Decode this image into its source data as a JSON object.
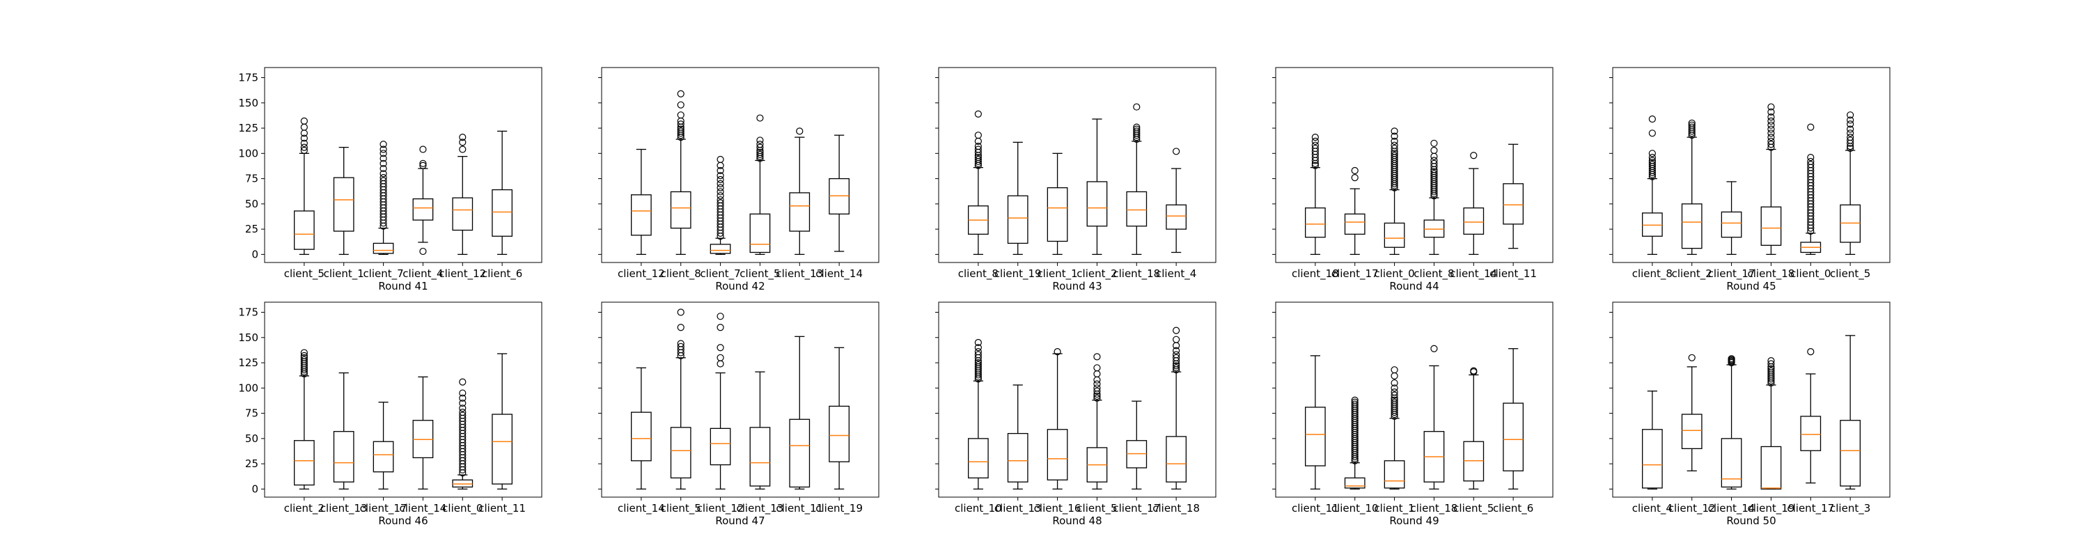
{
  "chart_data": [
    {
      "type": "box",
      "xlabel": "Round 41",
      "ylim": [
        -8,
        185
      ],
      "yticks": [
        0,
        25,
        50,
        75,
        100,
        125,
        150,
        175
      ],
      "categories": [
        "client_5",
        "client_1",
        "client_7",
        "client_4",
        "client_12",
        "client_6"
      ],
      "boxes": [
        {
          "whislo": 0,
          "q1": 5,
          "med": 20,
          "q3": 43,
          "whishi": 100,
          "fliers": [
            103,
            106,
            110,
            115,
            120,
            126,
            132
          ]
        },
        {
          "whislo": 0,
          "q1": 23,
          "med": 54,
          "q3": 76,
          "whishi": 106,
          "fliers": []
        },
        {
          "whislo": 0,
          "q1": 1,
          "med": 4,
          "q3": 11,
          "whishi": 26,
          "fliers": [
            28,
            31,
            34,
            37,
            40,
            43,
            46,
            49,
            52,
            55,
            58,
            61,
            64,
            67,
            70,
            73,
            76,
            80,
            85,
            90,
            95,
            100,
            104,
            109
          ]
        },
        {
          "whislo": 12,
          "q1": 34,
          "med": 46,
          "q3": 55,
          "whishi": 85,
          "fliers": [
            3,
            88,
            90,
            104
          ]
        },
        {
          "whislo": 0,
          "q1": 24,
          "med": 44,
          "q3": 56,
          "whishi": 97,
          "fliers": [
            104,
            111,
            116
          ]
        },
        {
          "whislo": 0,
          "q1": 18,
          "med": 42,
          "q3": 64,
          "whishi": 122,
          "fliers": []
        }
      ]
    },
    {
      "type": "box",
      "xlabel": "Round 42",
      "ylim": [
        -8,
        185
      ],
      "yticks": [
        0,
        25,
        50,
        75,
        100,
        125,
        150,
        175
      ],
      "categories": [
        "client_12",
        "client_8",
        "client_7",
        "client_5",
        "client_13",
        "client_14"
      ],
      "boxes": [
        {
          "whislo": 0,
          "q1": 19,
          "med": 43,
          "q3": 59,
          "whishi": 104,
          "fliers": []
        },
        {
          "whislo": 0,
          "q1": 26,
          "med": 46,
          "q3": 62,
          "whishi": 114,
          "fliers": [
            116,
            118,
            120,
            122,
            124,
            126,
            129,
            132,
            138,
            148,
            159
          ]
        },
        {
          "whislo": 0,
          "q1": 1,
          "med": 4,
          "q3": 10,
          "whishi": 16,
          "fliers": [
            18,
            21,
            24,
            27,
            30,
            33,
            36,
            39,
            42,
            45,
            48,
            51,
            54,
            58,
            62,
            66,
            70,
            74,
            78,
            83,
            88,
            94
          ]
        },
        {
          "whislo": 0,
          "q1": 2,
          "med": 10,
          "q3": 40,
          "whishi": 93,
          "fliers": [
            95,
            97,
            99,
            101,
            103,
            106,
            109,
            113,
            135
          ]
        },
        {
          "whislo": 0,
          "q1": 23,
          "med": 48,
          "q3": 61,
          "whishi": 116,
          "fliers": [
            122
          ]
        },
        {
          "whislo": 3,
          "q1": 40,
          "med": 58,
          "q3": 75,
          "whishi": 118,
          "fliers": []
        }
      ]
    },
    {
      "type": "box",
      "xlabel": "Round 43",
      "ylim": [
        -8,
        185
      ],
      "yticks": [
        0,
        25,
        50,
        75,
        100,
        125,
        150,
        175
      ],
      "categories": [
        "client_8",
        "client_19",
        "client_1",
        "client_2",
        "client_18",
        "client_4"
      ],
      "boxes": [
        {
          "whislo": 0,
          "q1": 20,
          "med": 34,
          "q3": 48,
          "whishi": 86,
          "fliers": [
            88,
            90,
            92,
            94,
            96,
            98,
            101,
            104,
            107,
            112,
            118,
            139
          ]
        },
        {
          "whislo": 0,
          "q1": 11,
          "med": 36,
          "q3": 58,
          "whishi": 111,
          "fliers": []
        },
        {
          "whislo": 0,
          "q1": 13,
          "med": 46,
          "q3": 66,
          "whishi": 100,
          "fliers": []
        },
        {
          "whislo": 0,
          "q1": 28,
          "med": 46,
          "q3": 72,
          "whishi": 134,
          "fliers": []
        },
        {
          "whislo": 0,
          "q1": 28,
          "med": 44,
          "q3": 62,
          "whishi": 112,
          "fliers": [
            114,
            116,
            118,
            120,
            122,
            124,
            126,
            146
          ]
        },
        {
          "whislo": 2,
          "q1": 25,
          "med": 38,
          "q3": 49,
          "whishi": 85,
          "fliers": [
            102
          ]
        }
      ]
    },
    {
      "type": "box",
      "xlabel": "Round 44",
      "ylim": [
        -8,
        185
      ],
      "yticks": [
        0,
        25,
        50,
        75,
        100,
        125,
        150,
        175
      ],
      "categories": [
        "client_18",
        "client_17",
        "client_0",
        "client_8",
        "client_14",
        "client_11"
      ],
      "boxes": [
        {
          "whislo": 0,
          "q1": 17,
          "med": 30,
          "q3": 46,
          "whishi": 86,
          "fliers": [
            88,
            90,
            93,
            96,
            99,
            102,
            105,
            108,
            112,
            116
          ]
        },
        {
          "whislo": 0,
          "q1": 20,
          "med": 32,
          "q3": 40,
          "whishi": 65,
          "fliers": [
            76,
            83
          ]
        },
        {
          "whislo": 0,
          "q1": 7,
          "med": 16,
          "q3": 31,
          "whishi": 64,
          "fliers": [
            66,
            68,
            70,
            72,
            74,
            76,
            78,
            80,
            82,
            84,
            86,
            88,
            90,
            92,
            94,
            96,
            98,
            100,
            102,
            105,
            108,
            112,
            117,
            122
          ]
        },
        {
          "whislo": 0,
          "q1": 17,
          "med": 25,
          "q3": 34,
          "whishi": 56,
          "fliers": [
            58,
            60,
            62,
            64,
            66,
            68,
            70,
            72,
            74,
            76,
            78,
            80,
            82,
            84,
            87,
            90,
            93,
            97,
            103,
            110
          ]
        },
        {
          "whislo": 0,
          "q1": 20,
          "med": 32,
          "q3": 46,
          "whishi": 85,
          "fliers": [
            98
          ]
        },
        {
          "whislo": 6,
          "q1": 30,
          "med": 49,
          "q3": 70,
          "whishi": 109,
          "fliers": []
        }
      ]
    },
    {
      "type": "box",
      "xlabel": "Round 45",
      "ylim": [
        -8,
        185
      ],
      "yticks": [
        0,
        25,
        50,
        75,
        100,
        125,
        150,
        175
      ],
      "categories": [
        "client_8",
        "client_2",
        "client_17",
        "client_18",
        "client_0",
        "client_5"
      ],
      "boxes": [
        {
          "whislo": 0,
          "q1": 18,
          "med": 29,
          "q3": 41,
          "whishi": 75,
          "fliers": [
            77,
            79,
            81,
            83,
            85,
            87,
            89,
            91,
            93,
            96,
            100,
            120,
            134
          ]
        },
        {
          "whislo": 0,
          "q1": 6,
          "med": 32,
          "q3": 50,
          "whishi": 116,
          "fliers": [
            118,
            120,
            122,
            124,
            126,
            128,
            130
          ]
        },
        {
          "whislo": 0,
          "q1": 17,
          "med": 31,
          "q3": 42,
          "whishi": 72,
          "fliers": []
        },
        {
          "whislo": 0,
          "q1": 9,
          "med": 26,
          "q3": 47,
          "whishi": 104,
          "fliers": [
            106,
            109,
            112,
            116,
            120,
            124,
            128,
            132,
            136,
            141,
            146
          ]
        },
        {
          "whislo": 0,
          "q1": 2,
          "med": 7,
          "q3": 12,
          "whishi": 21,
          "fliers": [
            23,
            26,
            29,
            32,
            35,
            38,
            41,
            44,
            47,
            50,
            53,
            56,
            59,
            62,
            65,
            68,
            71,
            74,
            77,
            80,
            83,
            86,
            89,
            92,
            96,
            126
          ]
        },
        {
          "whislo": 0,
          "q1": 12,
          "med": 31,
          "q3": 49,
          "whishi": 103,
          "fliers": [
            105,
            107,
            110,
            113,
            116,
            120,
            124,
            129,
            133,
            138
          ]
        }
      ]
    },
    {
      "type": "box",
      "xlabel": "Round 46",
      "ylim": [
        -8,
        185
      ],
      "yticks": [
        0,
        25,
        50,
        75,
        100,
        125,
        150,
        175
      ],
      "categories": [
        "client_2",
        "client_13",
        "client_17",
        "client_14",
        "client_0",
        "client_11"
      ],
      "boxes": [
        {
          "whislo": 0,
          "q1": 4,
          "med": 28,
          "q3": 48,
          "whishi": 112,
          "fliers": [
            114,
            116,
            118,
            120,
            122,
            124,
            126,
            128,
            130,
            132,
            135
          ]
        },
        {
          "whislo": 0,
          "q1": 7,
          "med": 26,
          "q3": 57,
          "whishi": 115,
          "fliers": []
        },
        {
          "whislo": 0,
          "q1": 17,
          "med": 34,
          "q3": 47,
          "whishi": 86,
          "fliers": []
        },
        {
          "whislo": 0,
          "q1": 31,
          "med": 49,
          "q3": 68,
          "whishi": 111,
          "fliers": []
        },
        {
          "whislo": 0,
          "q1": 2,
          "med": 5,
          "q3": 9,
          "whishi": 14,
          "fliers": [
            16,
            19,
            22,
            25,
            28,
            31,
            34,
            37,
            40,
            43,
            46,
            49,
            52,
            55,
            58,
            61,
            64,
            67,
            70,
            73,
            76,
            80,
            85,
            90,
            95,
            106
          ]
        },
        {
          "whislo": 0,
          "q1": 5,
          "med": 47,
          "q3": 74,
          "whishi": 134,
          "fliers": []
        }
      ]
    },
    {
      "type": "box",
      "xlabel": "Round 47",
      "ylim": [
        -8,
        185
      ],
      "yticks": [
        0,
        25,
        50,
        75,
        100,
        125,
        150,
        175
      ],
      "categories": [
        "client_14",
        "client_5",
        "client_12",
        "client_13",
        "client_11",
        "client_19"
      ],
      "boxes": [
        {
          "whislo": 0,
          "q1": 28,
          "med": 50,
          "q3": 76,
          "whishi": 120,
          "fliers": []
        },
        {
          "whislo": 0,
          "q1": 11,
          "med": 38,
          "q3": 61,
          "whishi": 130,
          "fliers": [
            132,
            135,
            138,
            141,
            144,
            160,
            175
          ]
        },
        {
          "whislo": 0,
          "q1": 24,
          "med": 45,
          "q3": 60,
          "whishi": 115,
          "fliers": [
            124,
            130,
            140,
            160,
            171
          ]
        },
        {
          "whislo": 0,
          "q1": 3,
          "med": 26,
          "q3": 61,
          "whishi": 116,
          "fliers": []
        },
        {
          "whislo": 0,
          "q1": 2,
          "med": 43,
          "q3": 69,
          "whishi": 151,
          "fliers": []
        },
        {
          "whislo": 0,
          "q1": 27,
          "med": 53,
          "q3": 82,
          "whishi": 140,
          "fliers": []
        }
      ]
    },
    {
      "type": "box",
      "xlabel": "Round 48",
      "ylim": [
        -8,
        185
      ],
      "yticks": [
        0,
        25,
        50,
        75,
        100,
        125,
        150,
        175
      ],
      "categories": [
        "client_10",
        "client_13",
        "client_16",
        "client_5",
        "client_17",
        "client_18"
      ],
      "boxes": [
        {
          "whislo": 0,
          "q1": 11,
          "med": 27,
          "q3": 50,
          "whishi": 107,
          "fliers": [
            109,
            111,
            113,
            115,
            117,
            119,
            121,
            123,
            125,
            127,
            130,
            133,
            136,
            140,
            145
          ]
        },
        {
          "whislo": 0,
          "q1": 7,
          "med": 28,
          "q3": 55,
          "whishi": 103,
          "fliers": []
        },
        {
          "whislo": 0,
          "q1": 9,
          "med": 30,
          "q3": 59,
          "whishi": 134,
          "fliers": [
            136
          ]
        },
        {
          "whislo": 0,
          "q1": 7,
          "med": 24,
          "q3": 41,
          "whishi": 88,
          "fliers": [
            90,
            92,
            94,
            97,
            100,
            104,
            108,
            114,
            120,
            131
          ]
        },
        {
          "whislo": 0,
          "q1": 21,
          "med": 35,
          "q3": 48,
          "whishi": 87,
          "fliers": []
        },
        {
          "whislo": 0,
          "q1": 7,
          "med": 25,
          "q3": 52,
          "whishi": 116,
          "fliers": [
            118,
            120,
            122,
            124,
            127,
            130,
            133,
            137,
            142,
            148,
            157
          ]
        }
      ]
    },
    {
      "type": "box",
      "xlabel": "Round 49",
      "ylim": [
        -8,
        185
      ],
      "yticks": [
        0,
        25,
        50,
        75,
        100,
        125,
        150,
        175
      ],
      "categories": [
        "client_11",
        "client_10",
        "client_1",
        "client_18",
        "client_5",
        "client_6"
      ],
      "boxes": [
        {
          "whislo": 0,
          "q1": 23,
          "med": 54,
          "q3": 81,
          "whishi": 132,
          "fliers": []
        },
        {
          "whislo": 0,
          "q1": 1,
          "med": 3,
          "q3": 11,
          "whishi": 26,
          "fliers": [
            28,
            30,
            32,
            34,
            36,
            38,
            40,
            42,
            44,
            46,
            48,
            50,
            52,
            54,
            56,
            58,
            60,
            62,
            64,
            66,
            68,
            70,
            72,
            74,
            76,
            78,
            80,
            82,
            84,
            86,
            88
          ]
        },
        {
          "whislo": 0,
          "q1": 1,
          "med": 8,
          "q3": 28,
          "whishi": 70,
          "fliers": [
            72,
            74,
            76,
            78,
            80,
            82,
            84,
            86,
            88,
            90,
            93,
            96,
            100,
            105,
            112,
            118
          ]
        },
        {
          "whislo": 0,
          "q1": 7,
          "med": 32,
          "q3": 57,
          "whishi": 122,
          "fliers": [
            139
          ]
        },
        {
          "whislo": 0,
          "q1": 8,
          "med": 28,
          "q3": 47,
          "whishi": 113,
          "fliers": [
            116,
            117
          ]
        },
        {
          "whislo": 0,
          "q1": 18,
          "med": 49,
          "q3": 85,
          "whishi": 139,
          "fliers": []
        }
      ]
    },
    {
      "type": "box",
      "xlabel": "Round 50",
      "ylim": [
        -8,
        185
      ],
      "yticks": [
        0,
        25,
        50,
        75,
        100,
        125,
        150,
        175
      ],
      "categories": [
        "client_4",
        "client_12",
        "client_14",
        "client_19",
        "client_17",
        "client_3"
      ],
      "boxes": [
        {
          "whislo": 0,
          "q1": 1,
          "med": 24,
          "q3": 59,
          "whishi": 97,
          "fliers": []
        },
        {
          "whislo": 18,
          "q1": 40,
          "med": 58,
          "q3": 74,
          "whishi": 121,
          "fliers": [
            130
          ]
        },
        {
          "whislo": 0,
          "q1": 2,
          "med": 10,
          "q3": 50,
          "whishi": 123,
          "fliers": [
            125,
            126,
            127,
            128,
            129
          ]
        },
        {
          "whislo": 0,
          "q1": 0,
          "med": 1,
          "q3": 42,
          "whishi": 103,
          "fliers": [
            105,
            107,
            109,
            111,
            113,
            115,
            117,
            119,
            121,
            124,
            127
          ]
        },
        {
          "whislo": 6,
          "q1": 38,
          "med": 54,
          "q3": 72,
          "whishi": 114,
          "fliers": [
            136
          ]
        },
        {
          "whislo": 0,
          "q1": 3,
          "med": 38,
          "q3": 68,
          "whishi": 152,
          "fliers": []
        }
      ]
    }
  ]
}
